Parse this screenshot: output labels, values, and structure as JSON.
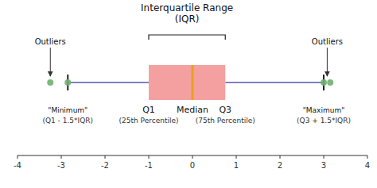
{
  "chart_data": {
    "type": "box",
    "orientation": "horizontal",
    "color": "#f4a0a0",
    "q1": {
      "value": -1,
      "label": "Q1",
      "note": "(25th Percentile)"
    },
    "median": {
      "value": 0,
      "label": "Median",
      "color": "#e8a020"
    },
    "q3": {
      "value": 0.75,
      "label": "Q3",
      "note": "(75th Percentile)"
    },
    "whisker_low": {
      "value": -2.85,
      "label": "\"Minimum\"",
      "note": "(Q1 - 1.5*IQR)",
      "color": "#8080c8"
    },
    "whisker_high": {
      "value": 3.0,
      "label": "\"Maximum\"",
      "note": "(Q3 + 1.5*IQR)",
      "color": "#8080c8"
    },
    "outliers": {
      "values": [
        -3.25,
        -2.85,
        3.0,
        3.15
      ],
      "color": "#70b070"
    },
    "iqr": {
      "label": "Interquartile Range\n(IQR)"
    },
    "annotations": [
      {
        "text": "Outliers",
        "x": -3.25
      },
      {
        "text": "Outliers",
        "x": 3.08
      }
    ],
    "xlim": [
      -4,
      4
    ],
    "xticks": [
      -4,
      -3,
      -2,
      -1,
      0,
      1,
      2,
      3,
      4
    ]
  }
}
